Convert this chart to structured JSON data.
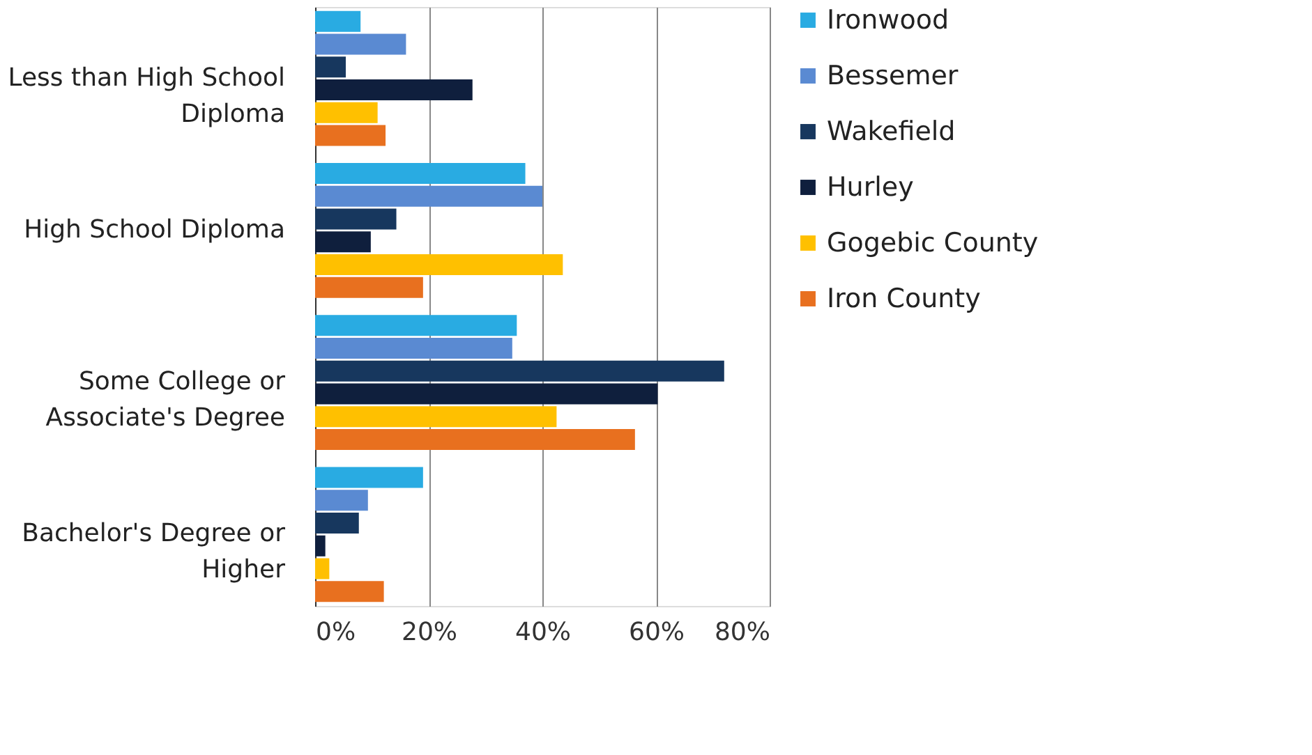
{
  "chart_data": {
    "type": "bar",
    "orientation": "horizontal",
    "categories": [
      "Less than High School Diploma",
      "High School Diploma",
      "Some College or Associate's Degree",
      "Bachelor's Degree or Higher"
    ],
    "series": [
      {
        "name": "Ironwood",
        "color": "#29abe2",
        "values": [
          8,
          37,
          35.5,
          19
        ]
      },
      {
        "name": "Bessemer",
        "color": "#5a8ad2",
        "values": [
          16,
          40,
          34.7,
          9.3
        ]
      },
      {
        "name": "Wakefield",
        "color": "#17375e",
        "values": [
          5.4,
          14.3,
          72,
          7.7
        ]
      },
      {
        "name": "Hurley",
        "color": "#0f1f3d",
        "values": [
          27.7,
          9.8,
          60.3,
          1.8
        ]
      },
      {
        "name": "Gogebic County",
        "color": "#ffc000",
        "values": [
          11,
          43.6,
          42.5,
          2.5
        ]
      },
      {
        "name": "Iron County",
        "color": "#e8701f",
        "values": [
          12.4,
          19,
          56.3,
          12.1
        ]
      }
    ],
    "xlim": [
      0,
      80
    ],
    "xticks": [
      {
        "value": 0,
        "label": "0%"
      },
      {
        "value": 20,
        "label": "20%"
      },
      {
        "value": 40,
        "label": "40%"
      },
      {
        "value": 60,
        "label": "60%"
      },
      {
        "value": 80,
        "label": "80%"
      }
    ],
    "grid": "x",
    "legend": "right"
  }
}
